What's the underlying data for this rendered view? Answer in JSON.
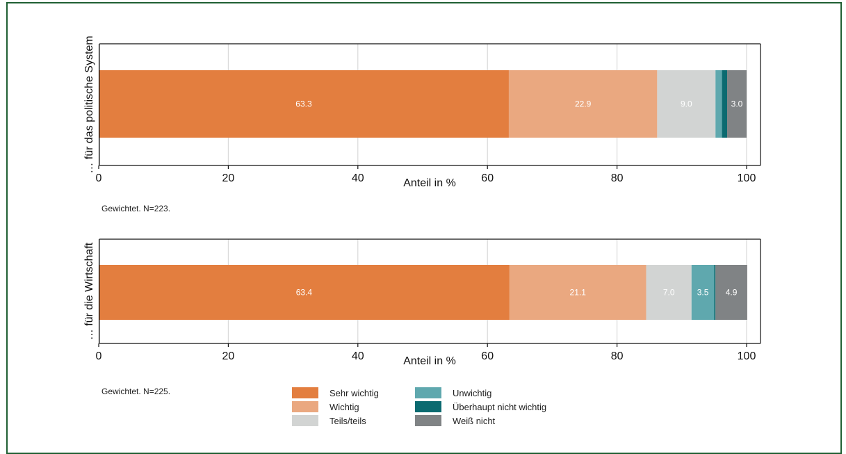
{
  "chart_data": [
    {
      "type": "bar",
      "orientation": "horizontal",
      "stacked": true,
      "categories": [
        "… für das politische System"
      ],
      "series": [
        {
          "name": "Sehr wichtig",
          "values": [
            63.3
          ]
        },
        {
          "name": "Wichtig",
          "values": [
            22.9
          ]
        },
        {
          "name": "Teils/teils",
          "values": [
            9.0
          ]
        },
        {
          "name": "Unwichtig",
          "values": [
            1.0
          ]
        },
        {
          "name": "Überhaupt nicht wichtig",
          "values": [
            0.8
          ]
        },
        {
          "name": "Weiß nicht",
          "values": [
            3.0
          ]
        }
      ],
      "data_labels": [
        "63.3",
        "22.9",
        "9.0",
        "",
        "",
        "3.0"
      ],
      "xlabel": "Anteil in %",
      "xlim": [
        0,
        100
      ],
      "xticks": [
        0,
        20,
        40,
        60,
        80,
        100
      ],
      "grid": true,
      "note": "Gewichtet. N=223."
    },
    {
      "type": "bar",
      "orientation": "horizontal",
      "stacked": true,
      "categories": [
        "… für die Wirtschaft"
      ],
      "series": [
        {
          "name": "Sehr wichtig",
          "values": [
            63.4
          ]
        },
        {
          "name": "Wichtig",
          "values": [
            21.1
          ]
        },
        {
          "name": "Teils/teils",
          "values": [
            7.0
          ]
        },
        {
          "name": "Unwichtig",
          "values": [
            3.5
          ]
        },
        {
          "name": "Überhaupt nicht wichtig",
          "values": [
            0.2
          ]
        },
        {
          "name": "Weiß nicht",
          "values": [
            4.9
          ]
        }
      ],
      "data_labels": [
        "63.4",
        "21.1",
        "7.0",
        "3.5",
        "",
        "4.9"
      ],
      "xlabel": "Anteil in %",
      "xlim": [
        0,
        100
      ],
      "xticks": [
        0,
        20,
        40,
        60,
        80,
        100
      ],
      "grid": true,
      "note": "Gewichtet. N=225."
    }
  ],
  "colors": {
    "Sehr wichtig": "#e37e3f",
    "Wichtig": "#eaa880",
    "Teils/teils": "#d2d4d3",
    "Unwichtig": "#5fa8ae",
    "Überhaupt nicht wichtig": "#0b6a70",
    "Weiß nicht": "#808385",
    "frame": "#1f5f33",
    "grid": "#d9d9d9"
  },
  "legend": {
    "placement": "bottom-center",
    "items": [
      "Sehr wichtig",
      "Wichtig",
      "Teils/teils",
      "Unwichtig",
      "Überhaupt nicht wichtig",
      "Weiß nicht"
    ]
  }
}
